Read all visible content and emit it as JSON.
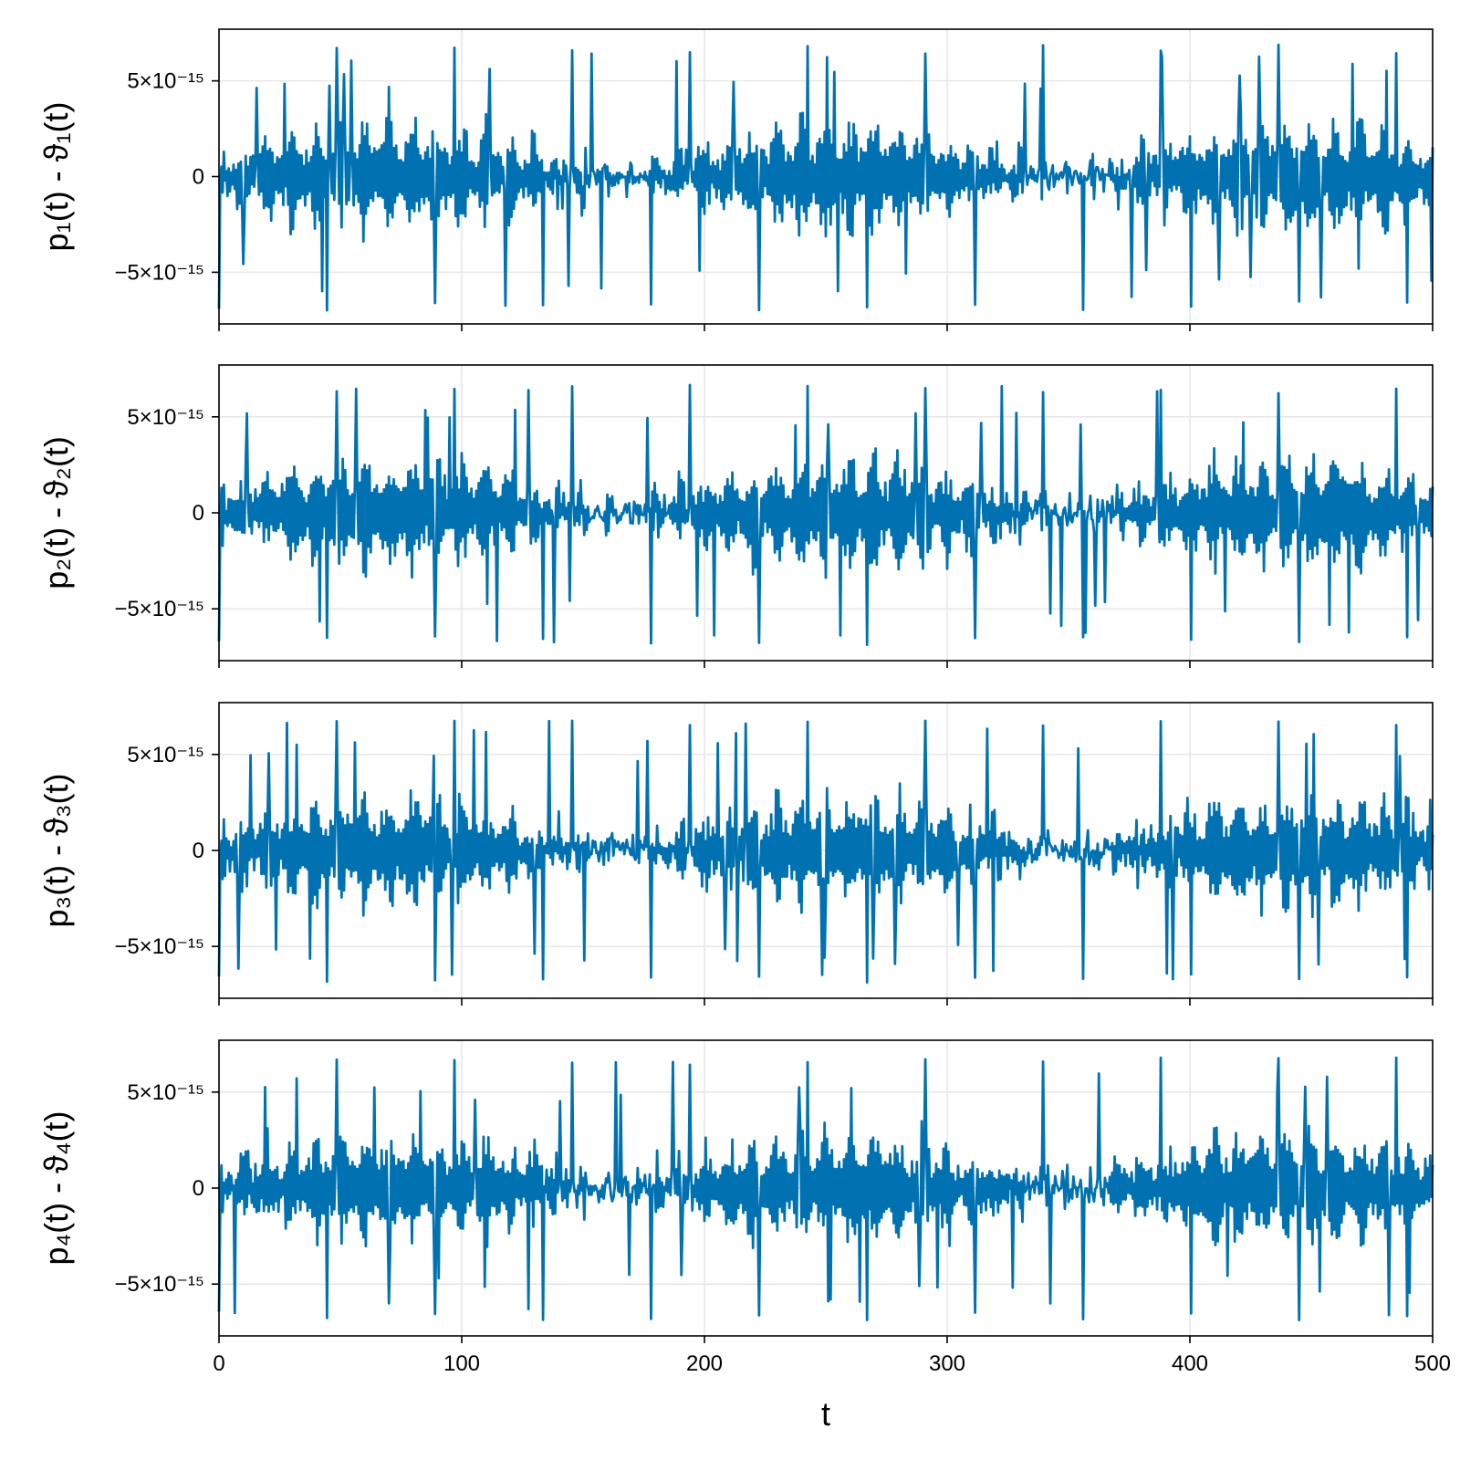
{
  "chart_data": [
    {
      "type": "line",
      "ylabel": "p₁(t) - ϑ₁(t)",
      "xlabel": "",
      "xlim": [
        0,
        500
      ],
      "ylim": [
        -7.7e-15,
        7.7e-15
      ],
      "x_ticks": [
        0,
        100,
        200,
        300,
        400,
        500
      ],
      "y_ticks": [
        -5e-15,
        0,
        5e-15
      ],
      "y_tick_labels": [
        "−5×10⁻¹⁵",
        "0",
        "5×10⁻¹⁵"
      ],
      "grid": true,
      "x_tick_labels_visible": false,
      "series": [
        {
          "color": "#0072b2",
          "x_start": 0,
          "x_step": 0.5,
          "envelope_period": 10,
          "typical_amplitude": 3e-15,
          "peak_max": 6.9e-15,
          "peak_min": -7e-15
        }
      ]
    },
    {
      "type": "line",
      "ylabel": "p₂(t) - ϑ₂(t)",
      "xlabel": "",
      "xlim": [
        0,
        500
      ],
      "ylim": [
        -7.7e-15,
        7.7e-15
      ],
      "x_ticks": [
        0,
        100,
        200,
        300,
        400,
        500
      ],
      "y_ticks": [
        -5e-15,
        0,
        5e-15
      ],
      "y_tick_labels": [
        "−5×10⁻¹⁵",
        "0",
        "5×10⁻¹⁵"
      ],
      "grid": true,
      "x_tick_labels_visible": false,
      "series": [
        {
          "color": "#0072b2",
          "x_start": 0,
          "x_step": 0.5,
          "envelope_period": 10,
          "typical_amplitude": 3e-15,
          "peak_max": 6.7e-15,
          "peak_min": -6.9e-15
        }
      ]
    },
    {
      "type": "line",
      "ylabel": "p₃(t) - ϑ₃(t)",
      "xlabel": "",
      "xlim": [
        0,
        500
      ],
      "ylim": [
        -7.7e-15,
        7.7e-15
      ],
      "x_ticks": [
        0,
        100,
        200,
        300,
        400,
        500
      ],
      "y_ticks": [
        -5e-15,
        0,
        5e-15
      ],
      "y_tick_labels": [
        "−5×10⁻¹⁵",
        "0",
        "5×10⁻¹⁵"
      ],
      "grid": true,
      "x_tick_labels_visible": false,
      "series": [
        {
          "color": "#0072b2",
          "x_start": 0,
          "x_step": 0.5,
          "envelope_period": 10,
          "typical_amplitude": 3e-15,
          "peak_max": 6.8e-15,
          "peak_min": -6.9e-15
        }
      ]
    },
    {
      "type": "line",
      "ylabel": "p₄(t) - ϑ₄(t)",
      "xlabel": "t",
      "xlim": [
        0,
        500
      ],
      "ylim": [
        -7.7e-15,
        7.7e-15
      ],
      "x_ticks": [
        0,
        100,
        200,
        300,
        400,
        500
      ],
      "x_tick_labels": [
        "0",
        "100",
        "200",
        "300",
        "400",
        "500"
      ],
      "y_ticks": [
        -5e-15,
        0,
        5e-15
      ],
      "y_tick_labels": [
        "−5×10⁻¹⁵",
        "0",
        "5×10⁻¹⁵"
      ],
      "grid": true,
      "x_tick_labels_visible": true,
      "series": [
        {
          "color": "#0072b2",
          "x_start": 0,
          "x_step": 0.5,
          "envelope_period": 10,
          "typical_amplitude": 3e-15,
          "peak_max": 6.9e-15,
          "peak_min": -6.9e-15
        }
      ]
    }
  ]
}
